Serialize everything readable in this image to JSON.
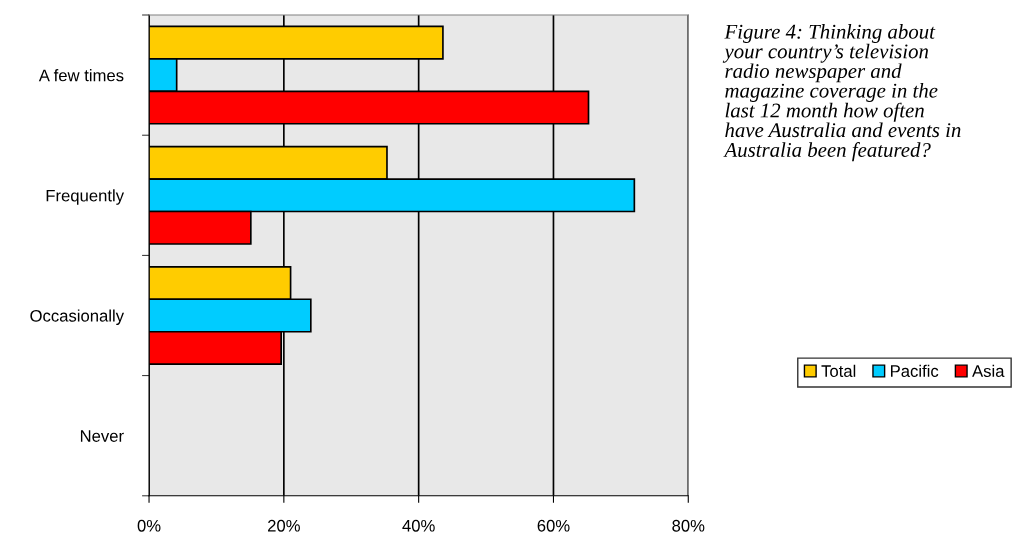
{
  "chart_data": {
    "type": "bar",
    "orientation": "horizontal",
    "title": "Figure 4: Thinking about your country’s television radio newspaper and magazine coverage in the last 12 month how often have Australia and events in Australia been featured?",
    "categories": [
      "A few times",
      "Frequently",
      "Occasionally",
      "Never"
    ],
    "series": [
      {
        "name": "Total",
        "color": "#ffcc00",
        "values": [
          43.6,
          35.3,
          21.0,
          null
        ]
      },
      {
        "name": "Pacific",
        "color": "#00ccff",
        "values": [
          4.1,
          72.0,
          24.0,
          null
        ]
      },
      {
        "name": "Asia",
        "color": "#ff0000",
        "values": [
          65.2,
          15.1,
          19.6,
          null
        ]
      }
    ],
    "xlim": [
      0,
      80
    ],
    "xticks": [
      {
        "value": 0,
        "label": "0%"
      },
      {
        "value": 20,
        "label": "20%"
      },
      {
        "value": 40,
        "label": "40%"
      },
      {
        "value": 60,
        "label": "60%"
      },
      {
        "value": 80,
        "label": "80%"
      }
    ],
    "grid": "x",
    "legend": "right"
  }
}
